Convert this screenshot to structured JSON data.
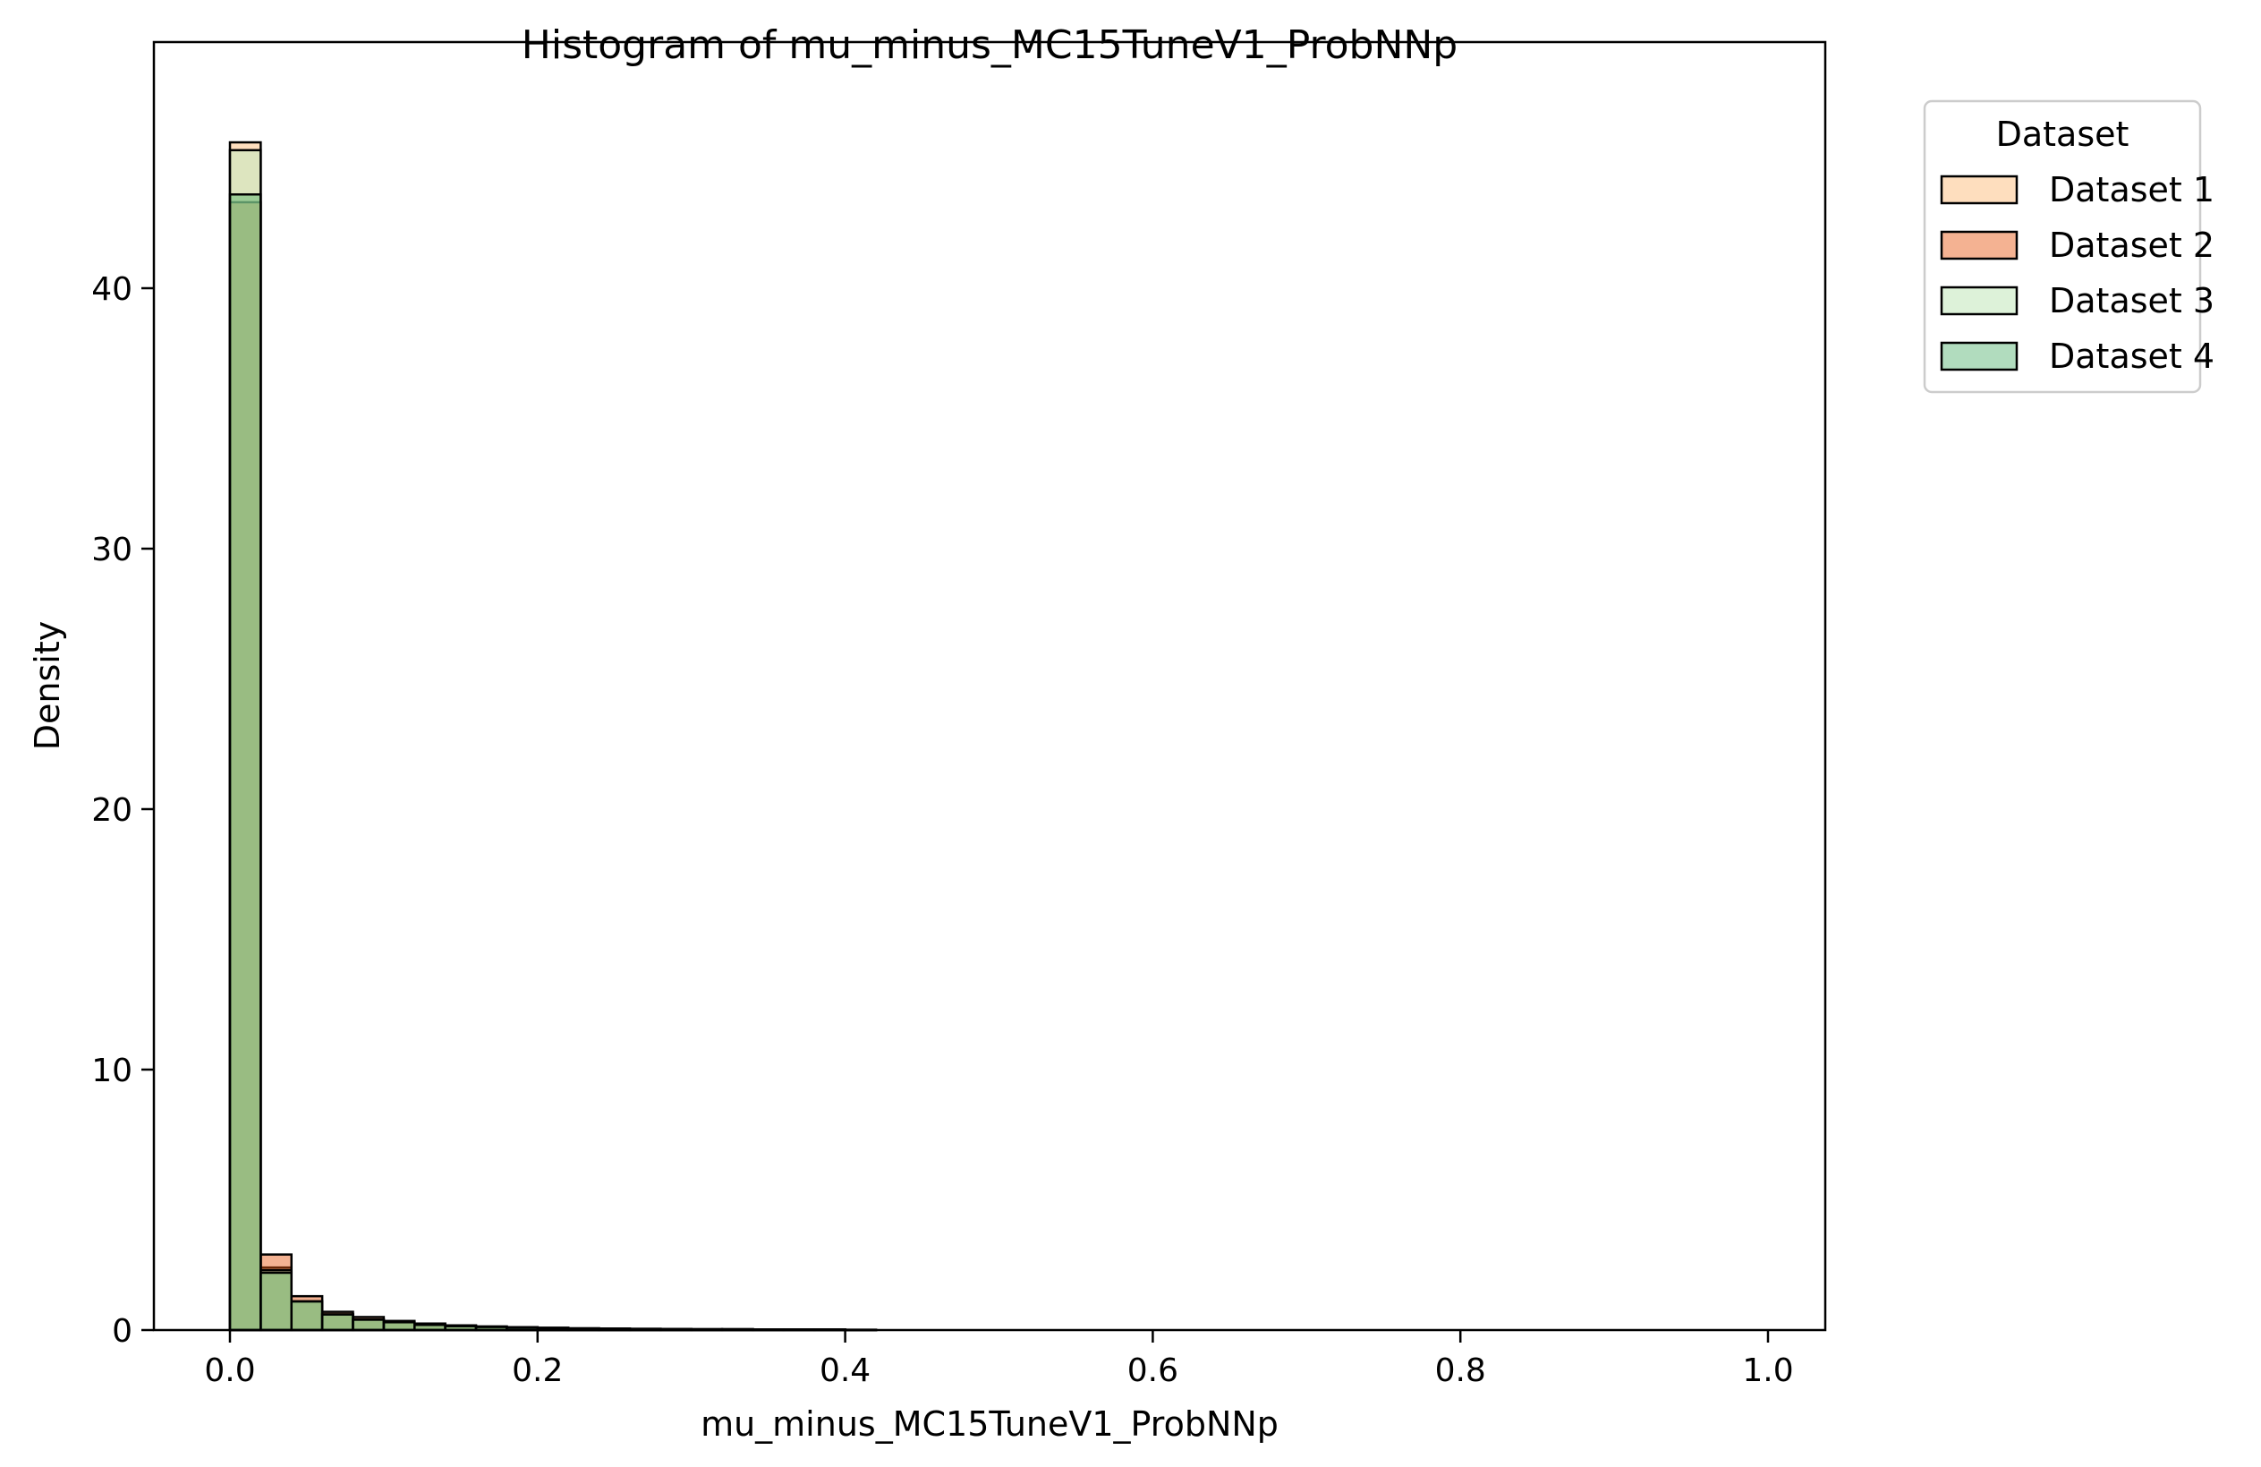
{
  "chart_data": {
    "type": "bar",
    "title": "Histogram of mu_minus_MC15TuneV1_ProbNNp",
    "xlabel": "mu_minus_MC15TuneV1_ProbNNp",
    "ylabel": "Density",
    "xlim": [
      -0.05,
      1.04
    ],
    "ylim": [
      0,
      48
    ],
    "xticks": [
      0.0,
      0.2,
      0.4,
      0.6,
      0.8,
      1.0
    ],
    "xtick_labels": [
      "0.0",
      "0.2",
      "0.4",
      "0.6",
      "0.8",
      "1.0"
    ],
    "yticks": [
      0,
      10,
      20,
      30,
      40
    ],
    "ytick_labels": [
      "0",
      "10",
      "20",
      "30",
      "40"
    ],
    "grid": false,
    "legend": {
      "title": "Dataset",
      "placement": "outside top-right"
    },
    "bin_edges": [
      0.0,
      0.02,
      0.04,
      0.06,
      0.08,
      0.1,
      0.12,
      0.14,
      0.16,
      0.18,
      0.2,
      0.22,
      0.24,
      0.26,
      0.28,
      0.3,
      0.32,
      0.34,
      0.36,
      0.38,
      0.4,
      0.42
    ],
    "series": [
      {
        "name": "Dataset 1",
        "color": "#fdd0a2",
        "opacity": 0.7,
        "values": [
          45.6,
          2.4,
          1.1,
          0.6,
          0.4,
          0.3,
          0.2,
          0.15,
          0.12,
          0.1,
          0.08,
          0.06,
          0.05,
          0.04,
          0.04,
          0.03,
          0.03,
          0.02,
          0.02,
          0.02,
          0.01
        ]
      },
      {
        "name": "Dataset 2",
        "color": "#e6550d",
        "opacity": 0.45,
        "values": [
          43.3,
          2.9,
          1.3,
          0.7,
          0.5,
          0.35,
          0.25,
          0.18,
          0.14,
          0.11,
          0.09,
          0.07,
          0.06,
          0.05,
          0.04,
          0.03,
          0.03,
          0.02,
          0.02,
          0.02,
          0.01
        ]
      },
      {
        "name": "Dataset 3",
        "color": "#c7e9c0",
        "opacity": 0.6,
        "values": [
          45.3,
          2.3,
          1.1,
          0.6,
          0.4,
          0.3,
          0.2,
          0.15,
          0.12,
          0.1,
          0.08,
          0.06,
          0.05,
          0.04,
          0.04,
          0.03,
          0.03,
          0.02,
          0.02,
          0.02,
          0.01
        ]
      },
      {
        "name": "Dataset 4",
        "color": "#31a354",
        "opacity": 0.38,
        "values": [
          43.6,
          2.2,
          1.1,
          0.6,
          0.4,
          0.3,
          0.2,
          0.15,
          0.12,
          0.1,
          0.08,
          0.06,
          0.05,
          0.04,
          0.04,
          0.03,
          0.03,
          0.02,
          0.02,
          0.02,
          0.01
        ]
      }
    ]
  }
}
